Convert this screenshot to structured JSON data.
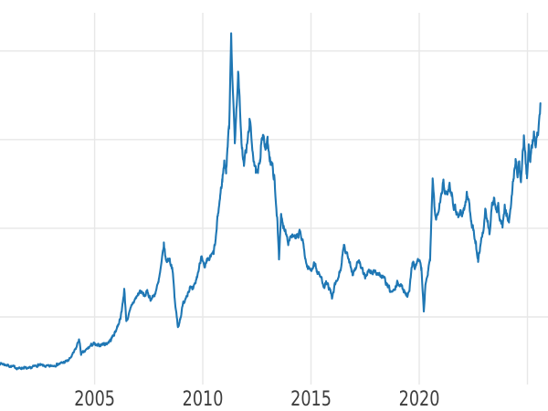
{
  "chart_data": {
    "type": "line",
    "title": "",
    "xlabel": "",
    "ylabel": "",
    "x_axis": {
      "tick_years": [
        2005,
        2010,
        2015,
        2020,
        2025
      ],
      "tick_labels": [
        "2005",
        "2010",
        "2015",
        "2020",
        ""
      ],
      "xlim": [
        2000.63,
        2025.95
      ]
    },
    "y_axis": {
      "gridline_values": [
        10,
        20,
        30,
        40
      ],
      "tick_labels_visible": false,
      "ylim": [
        3.0,
        44.3
      ]
    },
    "grid": true,
    "legend": "none",
    "series": [
      {
        "color": "#1f77b4",
        "line_width": 2.1,
        "sampling": "weekly",
        "noise_base": 0.06,
        "noise_pct": 0.014,
        "keypoints": [
          [
            2000.62,
            4.8
          ],
          [
            2000.9,
            4.6
          ],
          [
            2001.2,
            4.4
          ],
          [
            2001.5,
            4.2
          ],
          [
            2001.75,
            4.3
          ],
          [
            2001.92,
            4.1
          ],
          [
            2002.1,
            4.3
          ],
          [
            2002.4,
            4.6
          ],
          [
            2002.6,
            4.5
          ],
          [
            2002.9,
            4.4
          ],
          [
            2003.2,
            4.6
          ],
          [
            2003.5,
            4.8
          ],
          [
            2003.8,
            5.1
          ],
          [
            2004.0,
            5.8
          ],
          [
            2004.15,
            6.5
          ],
          [
            2004.28,
            7.5
          ],
          [
            2004.38,
            5.8
          ],
          [
            2004.55,
            6.1
          ],
          [
            2004.75,
            6.6
          ],
          [
            2004.95,
            7.0
          ],
          [
            2005.1,
            6.7
          ],
          [
            2005.3,
            6.9
          ],
          [
            2005.55,
            7.0
          ],
          [
            2005.75,
            7.4
          ],
          [
            2005.95,
            8.3
          ],
          [
            2006.1,
            9.2
          ],
          [
            2006.25,
            10.5
          ],
          [
            2006.37,
            13.1
          ],
          [
            2006.47,
            9.6
          ],
          [
            2006.6,
            10.3
          ],
          [
            2006.75,
            11.5
          ],
          [
            2006.95,
            12.3
          ],
          [
            2007.1,
            12.9
          ],
          [
            2007.3,
            12.4
          ],
          [
            2007.45,
            12.8
          ],
          [
            2007.6,
            12.0
          ],
          [
            2007.75,
            12.4
          ],
          [
            2007.95,
            13.8
          ],
          [
            2008.1,
            16.0
          ],
          [
            2008.2,
            18.2
          ],
          [
            2008.3,
            16.3
          ],
          [
            2008.45,
            16.6
          ],
          [
            2008.6,
            15.5
          ],
          [
            2008.7,
            12.0
          ],
          [
            2008.85,
            8.8
          ],
          [
            2008.95,
            9.8
          ],
          [
            2009.1,
            11.5
          ],
          [
            2009.25,
            12.5
          ],
          [
            2009.4,
            13.3
          ],
          [
            2009.55,
            12.9
          ],
          [
            2009.7,
            14.2
          ],
          [
            2009.85,
            15.8
          ],
          [
            2009.95,
            17.2
          ],
          [
            2010.08,
            15.3
          ],
          [
            2010.2,
            16.2
          ],
          [
            2010.35,
            16.7
          ],
          [
            2010.5,
            17.2
          ],
          [
            2010.6,
            18.8
          ],
          [
            2010.7,
            21.5
          ],
          [
            2010.8,
            23.5
          ],
          [
            2010.9,
            25.5
          ],
          [
            2011.0,
            27.5
          ],
          [
            2011.08,
            26.5
          ],
          [
            2011.15,
            29.5
          ],
          [
            2011.22,
            31.5
          ],
          [
            2011.31,
            42.3
          ],
          [
            2011.4,
            34.5
          ],
          [
            2011.48,
            30.0
          ],
          [
            2011.55,
            33.0
          ],
          [
            2011.63,
            37.6
          ],
          [
            2011.68,
            35.5
          ],
          [
            2011.75,
            31.0
          ],
          [
            2011.82,
            29.0
          ],
          [
            2011.9,
            27.0
          ],
          [
            2011.97,
            28.5
          ],
          [
            2012.03,
            29.0
          ],
          [
            2012.1,
            30.5
          ],
          [
            2012.16,
            32.2
          ],
          [
            2012.25,
            30.0
          ],
          [
            2012.35,
            28.0
          ],
          [
            2012.45,
            26.3
          ],
          [
            2012.55,
            26.0
          ],
          [
            2012.65,
            28.0
          ],
          [
            2012.72,
            30.6
          ],
          [
            2012.8,
            30.2
          ],
          [
            2012.9,
            28.8
          ],
          [
            2013.0,
            29.8
          ],
          [
            2013.1,
            28.0
          ],
          [
            2013.2,
            27.0
          ],
          [
            2013.3,
            25.8
          ],
          [
            2013.38,
            22.5
          ],
          [
            2013.45,
            21.0
          ],
          [
            2013.52,
            16.8
          ],
          [
            2013.62,
            21.3
          ],
          [
            2013.7,
            20.3
          ],
          [
            2013.8,
            20.0
          ],
          [
            2013.95,
            18.6
          ],
          [
            2014.1,
            19.3
          ],
          [
            2014.3,
            18.7
          ],
          [
            2014.5,
            19.6
          ],
          [
            2014.65,
            18.0
          ],
          [
            2014.8,
            15.8
          ],
          [
            2015.0,
            15.2
          ],
          [
            2015.15,
            16.2
          ],
          [
            2015.3,
            15.0
          ],
          [
            2015.45,
            14.5
          ],
          [
            2015.6,
            13.6
          ],
          [
            2015.75,
            13.8
          ],
          [
            2015.9,
            12.8
          ],
          [
            2015.97,
            12.0
          ],
          [
            2016.1,
            13.5
          ],
          [
            2016.25,
            14.3
          ],
          [
            2016.4,
            15.8
          ],
          [
            2016.52,
            17.9
          ],
          [
            2016.65,
            17.0
          ],
          [
            2016.8,
            16.2
          ],
          [
            2016.92,
            14.9
          ],
          [
            2017.05,
            15.5
          ],
          [
            2017.2,
            16.4
          ],
          [
            2017.35,
            15.2
          ],
          [
            2017.5,
            14.6
          ],
          [
            2017.65,
            15.2
          ],
          [
            2017.8,
            14.9
          ],
          [
            2017.95,
            15.2
          ],
          [
            2018.1,
            14.9
          ],
          [
            2018.25,
            14.6
          ],
          [
            2018.4,
            14.2
          ],
          [
            2018.55,
            13.4
          ],
          [
            2018.7,
            12.8
          ],
          [
            2018.85,
            12.9
          ],
          [
            2019.0,
            13.9
          ],
          [
            2019.15,
            13.5
          ],
          [
            2019.3,
            13.0
          ],
          [
            2019.45,
            12.4
          ],
          [
            2019.55,
            13.3
          ],
          [
            2019.65,
            15.3
          ],
          [
            2019.72,
            16.6
          ],
          [
            2019.8,
            15.6
          ],
          [
            2019.9,
            16.2
          ],
          [
            2020.0,
            16.5
          ],
          [
            2020.1,
            15.4
          ],
          [
            2020.21,
            10.7
          ],
          [
            2020.3,
            13.8
          ],
          [
            2020.4,
            14.9
          ],
          [
            2020.5,
            16.5
          ],
          [
            2020.56,
            20.5
          ],
          [
            2020.62,
            25.3
          ],
          [
            2020.7,
            22.8
          ],
          [
            2020.78,
            20.8
          ],
          [
            2020.88,
            22.2
          ],
          [
            2020.95,
            23.2
          ],
          [
            2021.05,
            24.2
          ],
          [
            2021.12,
            25.7
          ],
          [
            2021.2,
            23.6
          ],
          [
            2021.3,
            23.9
          ],
          [
            2021.4,
            25.0
          ],
          [
            2021.5,
            24.0
          ],
          [
            2021.6,
            22.6
          ],
          [
            2021.7,
            22.1
          ],
          [
            2021.8,
            21.4
          ],
          [
            2021.9,
            21.9
          ],
          [
            2022.0,
            21.6
          ],
          [
            2022.1,
            22.4
          ],
          [
            2022.2,
            23.8
          ],
          [
            2022.3,
            23.0
          ],
          [
            2022.4,
            21.0
          ],
          [
            2022.5,
            19.8
          ],
          [
            2022.6,
            18.4
          ],
          [
            2022.72,
            16.4
          ],
          [
            2022.85,
            18.6
          ],
          [
            2022.95,
            19.6
          ],
          [
            2023.05,
            21.8
          ],
          [
            2023.15,
            20.8
          ],
          [
            2023.25,
            19.4
          ],
          [
            2023.35,
            22.3
          ],
          [
            2023.45,
            23.2
          ],
          [
            2023.55,
            21.8
          ],
          [
            2023.65,
            22.5
          ],
          [
            2023.75,
            21.0
          ],
          [
            2023.85,
            20.4
          ],
          [
            2023.95,
            22.3
          ],
          [
            2024.05,
            21.4
          ],
          [
            2024.15,
            21.0
          ],
          [
            2024.25,
            22.8
          ],
          [
            2024.35,
            25.5
          ],
          [
            2024.45,
            27.8
          ],
          [
            2024.55,
            26.0
          ],
          [
            2024.62,
            27.3
          ],
          [
            2024.7,
            25.2
          ],
          [
            2024.78,
            28.3
          ],
          [
            2024.84,
            30.3
          ],
          [
            2024.92,
            27.5
          ],
          [
            2024.98,
            25.9
          ],
          [
            2025.06,
            29.6
          ],
          [
            2025.13,
            27.9
          ],
          [
            2025.22,
            29.5
          ],
          [
            2025.3,
            31.0
          ],
          [
            2025.38,
            28.8
          ],
          [
            2025.45,
            30.5
          ],
          [
            2025.52,
            31.5
          ],
          [
            2025.6,
            34.1
          ]
        ]
      }
    ],
    "style": {
      "grid_color": "#e7e7e7",
      "tick_text_color": "#3d3d3d",
      "background": "#ffffff"
    }
  }
}
